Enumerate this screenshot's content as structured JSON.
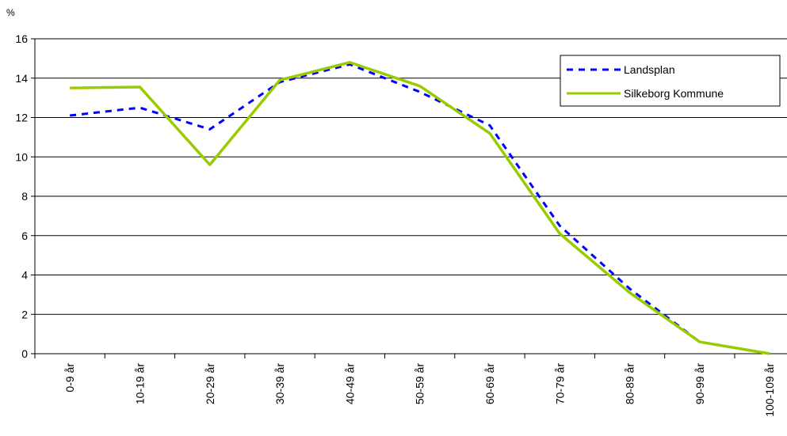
{
  "chart_data": {
    "type": "line",
    "title": "",
    "xlabel": "",
    "ylabel": "%",
    "ylim": [
      0,
      16
    ],
    "y_ticks": [
      0,
      2,
      4,
      6,
      8,
      10,
      12,
      14,
      16
    ],
    "grid": true,
    "legend_position": "top-right",
    "categories": [
      "0-9 år",
      "10-19 år",
      "20-29 år",
      "30-39 år",
      "40-49 år",
      "50-59 år",
      "60-69 år",
      "70-79 år",
      "80-89 år",
      "90-99 år",
      "100-109 år"
    ],
    "series": [
      {
        "name": "Landsplan",
        "color": "#0000ff",
        "style": "dashed",
        "values": [
          12.1,
          12.5,
          11.4,
          13.8,
          14.7,
          13.3,
          11.6,
          6.5,
          3.3,
          0.6,
          0.0
        ]
      },
      {
        "name": "Silkeborg Kommune",
        "color": "#99cc00",
        "style": "solid",
        "values": [
          13.5,
          13.55,
          9.6,
          13.9,
          14.8,
          13.6,
          11.2,
          6.1,
          3.1,
          0.6,
          0.0
        ]
      }
    ]
  }
}
